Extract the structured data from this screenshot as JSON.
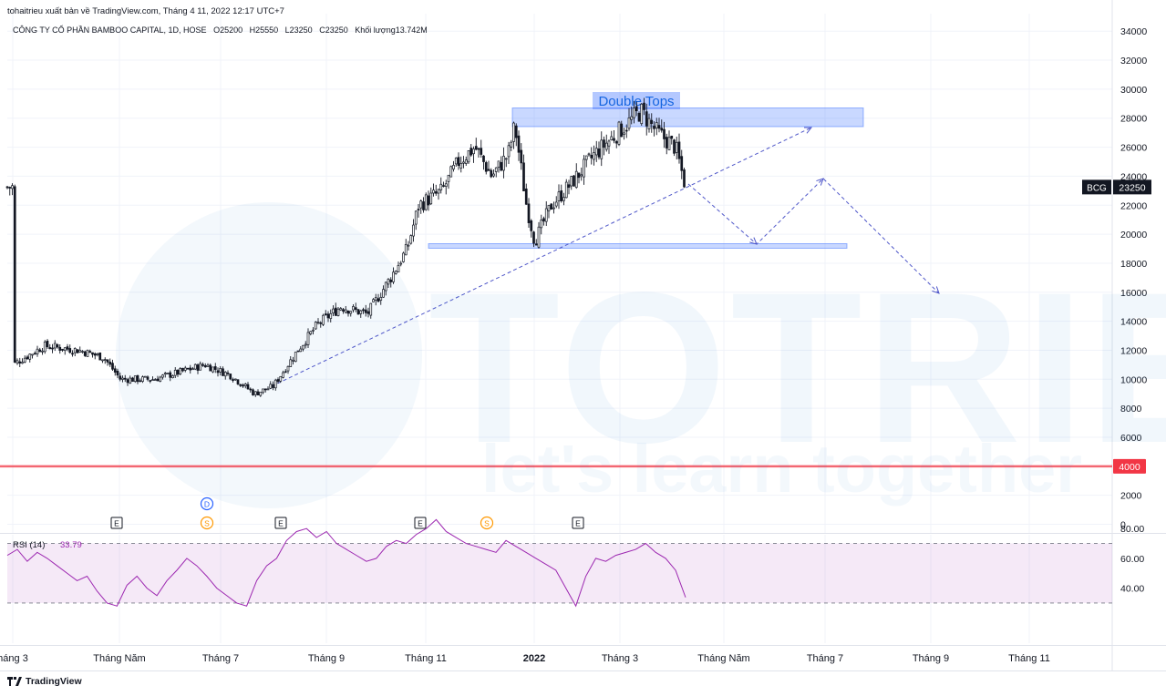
{
  "header": {
    "publisher_line": "tohaitrieu xuất bản về TradingView.com, Tháng 4 11, 2022 12:17 UTC+7",
    "symbol_name": "CÔNG TY CỔ PHẦN BAMBOO CAPITAL, 1D, HOSE",
    "open_label": "O25200",
    "high_label": "H25550",
    "low_label": "L23250",
    "close_label": "C23250",
    "volume_label": "Khối lượng13.742M"
  },
  "watermark": {
    "main": "TOTRIEU",
    "tagline": "let's learn together"
  },
  "footer": {
    "brand": "TradingView"
  },
  "chart_data": [
    {
      "type": "candlestick",
      "ylim": [
        0,
        35000
      ],
      "y_ticks": [
        0,
        2000,
        4000,
        6000,
        8000,
        10000,
        12000,
        14000,
        16000,
        18000,
        20000,
        22000,
        24000,
        26000,
        28000,
        30000,
        32000,
        34000
      ],
      "x_tick_labels": [
        "háng 3",
        "Tháng Năm",
        "Tháng 7",
        "Tháng 9",
        "Tháng 11",
        "2022",
        "Tháng 3",
        "Tháng Năm",
        "Tháng 7",
        "Tháng 9",
        "Tháng 11"
      ],
      "price_label": {
        "symbol": "BCG",
        "value": "23250"
      },
      "horizontal_line": {
        "value": "4000",
        "color": "#f23645"
      },
      "annotation_text": "Double Tops",
      "events": [
        "E",
        "D",
        "S",
        "E",
        "E",
        "S",
        "E"
      ],
      "approx_close_path": [
        [
          "2021-03-01",
          11000
        ],
        [
          "2021-03-20",
          12300
        ],
        [
          "2021-04-10",
          12000
        ],
        [
          "2021-04-25",
          11500
        ],
        [
          "2021-05-05",
          10000
        ],
        [
          "2021-05-25",
          10000
        ],
        [
          "2021-06-10",
          10500
        ],
        [
          "2021-06-25",
          11000
        ],
        [
          "2021-07-10",
          10300
        ],
        [
          "2021-07-25",
          9000
        ],
        [
          "2021-08-05",
          9500
        ],
        [
          "2021-08-20",
          12000
        ],
        [
          "2021-09-01",
          13800
        ],
        [
          "2021-09-15",
          15000
        ],
        [
          "2021-10-01",
          14500
        ],
        [
          "2021-10-15",
          17000
        ],
        [
          "2021-10-25",
          19000
        ],
        [
          "2021-11-01",
          22000
        ],
        [
          "2021-11-15",
          23000
        ],
        [
          "2021-11-25",
          25000
        ],
        [
          "2021-12-05",
          26000
        ],
        [
          "2021-12-15",
          24000
        ],
        [
          "2021-12-25",
          25500
        ],
        [
          "2021-12-29",
          27500
        ],
        [
          "2022-01-05",
          22000
        ],
        [
          "2022-01-10",
          19500
        ],
        [
          "2022-01-20",
          22000
        ],
        [
          "2022-02-01",
          23500
        ],
        [
          "2022-02-15",
          25500
        ],
        [
          "2022-03-01",
          27000
        ],
        [
          "2022-03-15",
          28500
        ],
        [
          "2022-03-25",
          27000
        ],
        [
          "2022-04-05",
          26000
        ],
        [
          "2022-04-11",
          23250
        ]
      ]
    },
    {
      "type": "line",
      "title": "RSI (14)",
      "last_value": "33.79",
      "ylim": [
        25,
        95
      ],
      "y_ticks": [
        40,
        60,
        80
      ],
      "bands": [
        30,
        70
      ],
      "approx_values": [
        62,
        66,
        58,
        64,
        60,
        55,
        50,
        45,
        48,
        38,
        30,
        28,
        42,
        48,
        40,
        35,
        45,
        52,
        60,
        55,
        48,
        40,
        35,
        30,
        28,
        45,
        55,
        60,
        72,
        78,
        80,
        74,
        78,
        70,
        66,
        62,
        58,
        60,
        68,
        72,
        70,
        76,
        80,
        86,
        78,
        74,
        70,
        68,
        66,
        64,
        72,
        68,
        64,
        60,
        56,
        52,
        40,
        28,
        48,
        60,
        58,
        62,
        64,
        66,
        70,
        64,
        60,
        52,
        33.79
      ]
    }
  ]
}
